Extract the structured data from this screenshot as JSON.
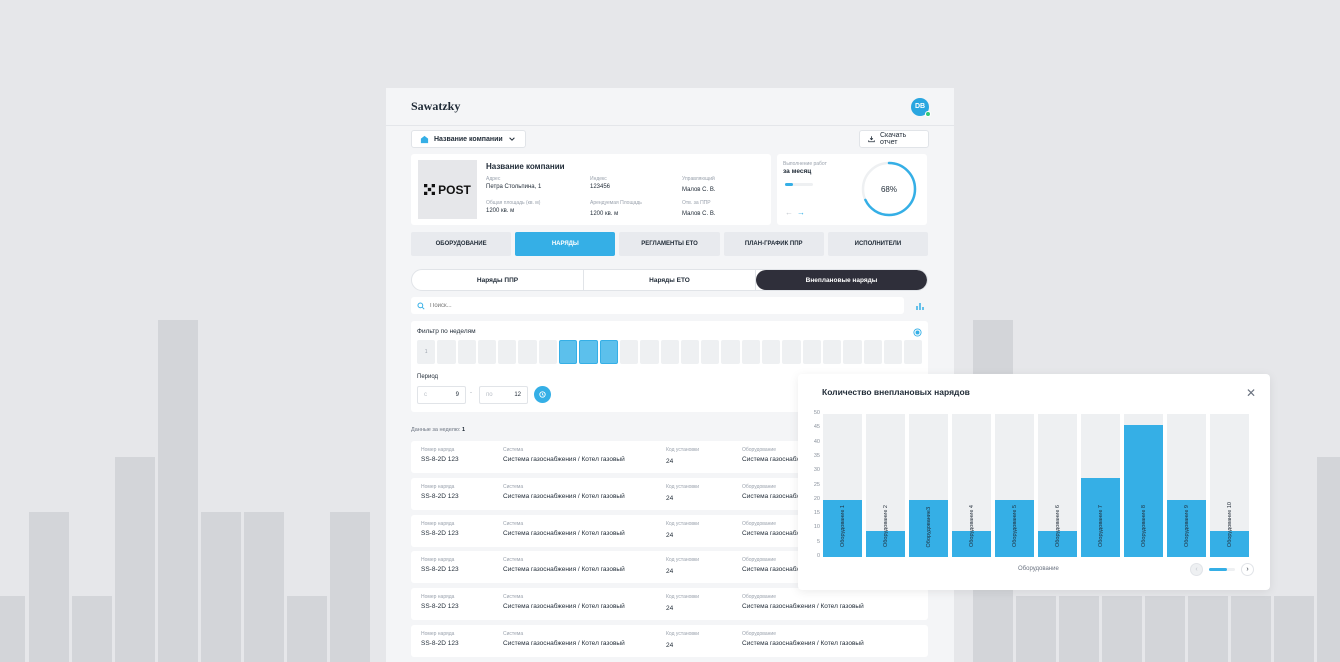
{
  "header": {
    "logo": "Sawatzky",
    "avatar_initials": "DB"
  },
  "company_select": {
    "label": "Название компании"
  },
  "download_button": {
    "label": "Скачать отчет"
  },
  "company_card": {
    "logo_text": "POST",
    "name": "Название компании",
    "fields": [
      {
        "label": "Адрес",
        "value": "Петра Стольпина, 1"
      },
      {
        "label": "Индекс",
        "value": "123456"
      },
      {
        "label": "Управляющий",
        "value": "Малов С. В."
      },
      {
        "label": "Общая площадь (кв. м)",
        "value": "1200 кв. м"
      },
      {
        "label": "Арендуемая Площадь",
        "value": "1200 кв. м"
      },
      {
        "label": "Отв. за ППР",
        "value": "Малов С. В."
      }
    ]
  },
  "progress_card": {
    "label": "Выполнение работ",
    "period": "за месяц",
    "percent_text": "68%",
    "percent": 68
  },
  "main_tabs": [
    {
      "label": "ОБОРУДОВАНИЕ",
      "active": false
    },
    {
      "label": "НАРЯДЫ",
      "active": true
    },
    {
      "label": "РЕГЛАМЕНТЫ ЕТО",
      "active": false
    },
    {
      "label": "ПЛАН-ГРАФИК ППР",
      "active": false
    },
    {
      "label": "ИСПОЛНИТЕЛИ",
      "active": false
    }
  ],
  "sub_tabs": [
    {
      "label": "Наряды ППР",
      "active": false
    },
    {
      "label": "Наряды ЕТО",
      "active": false
    },
    {
      "label": "Внеплановые наряды",
      "active": true
    }
  ],
  "search": {
    "placeholder": "Поиск..."
  },
  "filter": {
    "title": "Фильтр по неделям",
    "first_week": "1",
    "week_count": 25,
    "selected_weeks": [
      8,
      9,
      10
    ],
    "period_label": "Период",
    "from_placeholder": "с",
    "from_value": "9",
    "dash": "-",
    "to_placeholder": "по",
    "to_value": "12"
  },
  "data_for_week": {
    "label": "Данные за неделю:",
    "value": "1"
  },
  "table": {
    "columns": [
      "Номер наряда",
      "Система",
      "Код установки",
      "Оборудование"
    ],
    "rows": [
      {
        "number": "SS-8-2D 123",
        "system": "Система газоснабжения / Котел газовый",
        "code": "24",
        "equipment": "Система газоснабжения / Котел газовый"
      },
      {
        "number": "SS-8-2D 123",
        "system": "Система газоснабжения / Котел газовый",
        "code": "24",
        "equipment": "Система газоснабжения / Котел газовый"
      },
      {
        "number": "SS-8-2D 123",
        "system": "Система газоснабжения / Котел газовый",
        "code": "24",
        "equipment": "Система газоснабжения / Котел газовый"
      },
      {
        "number": "SS-8-2D 123",
        "system": "Система газоснабжения / Котел газовый",
        "code": "24",
        "equipment": "Система газоснабжения / Котел газовый"
      },
      {
        "number": "SS-8-2D 123",
        "system": "Система газоснабжения / Котел газовый",
        "code": "24",
        "equipment": "Система газоснабжения / Котел газовый"
      },
      {
        "number": "SS-8-2D 123",
        "system": "Система газоснабжения / Котел газовый",
        "code": "24",
        "equipment": "Система газоснабжения / Котел газовый"
      }
    ]
  },
  "chart_data": {
    "type": "bar",
    "title": "Количество внеплановых нарядов",
    "xlabel": "Оборудование",
    "ylabel": "",
    "ylim": [
      0,
      50
    ],
    "yticks": [
      0,
      5,
      10,
      15,
      20,
      25,
      30,
      35,
      40,
      45,
      50
    ],
    "categories": [
      "Оборудование 1",
      "Оборудование 2",
      "Оборудование3",
      "Оборудование 4",
      "Оборудование 5",
      "Оборудование 6",
      "Оборудование 7",
      "Оборудование 8",
      "Оборудование 9",
      "Оборудование 10"
    ],
    "values": [
      20,
      9,
      20,
      9,
      20,
      9,
      27.5,
      46,
      20,
      9
    ],
    "colors": {
      "bar": "#35afe6",
      "track": "#eef0f2"
    }
  }
}
